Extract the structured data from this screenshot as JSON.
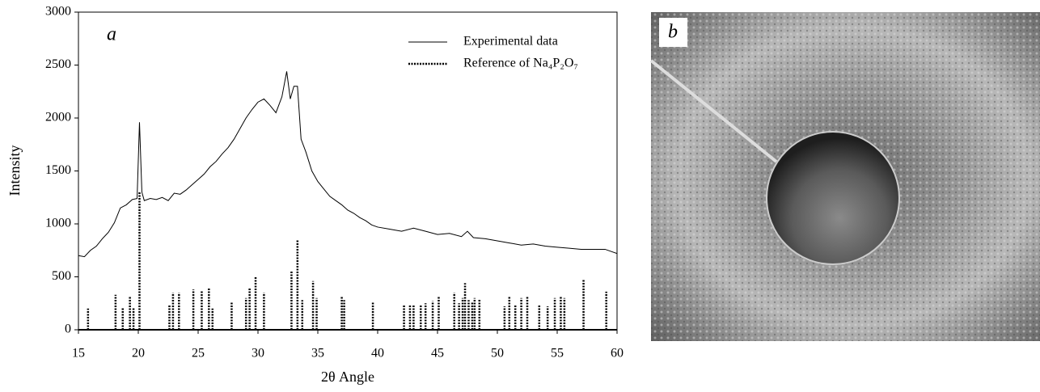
{
  "chart_data": {
    "type": "line",
    "panel_label": "a",
    "x_label": "2θ Angle",
    "y_label": "Intensity",
    "xlim": [
      15,
      60
    ],
    "xticks": [
      15,
      20,
      25,
      30,
      35,
      40,
      45,
      50,
      55,
      60
    ],
    "ylim": [
      0,
      3000
    ],
    "yticks": [
      0,
      500,
      1000,
      1500,
      2000,
      2500,
      3000
    ],
    "grid": false,
    "legend": "upper right",
    "series": [
      {
        "name": "Experimental data",
        "color": "#000000",
        "style": "line",
        "x": [
          15,
          15.5,
          16,
          16.5,
          17,
          17.5,
          18,
          18.5,
          19,
          19.5,
          19.9,
          20.1,
          20.3,
          20.5,
          21,
          21.5,
          22,
          22.5,
          23,
          23.5,
          24,
          24.5,
          25,
          25.5,
          26,
          26.5,
          27,
          27.5,
          28,
          28.5,
          29,
          29.5,
          30,
          30.5,
          31,
          31.5,
          32,
          32.4,
          32.7,
          33,
          33.3,
          33.6,
          34,
          34.5,
          35,
          35.5,
          36,
          36.5,
          37,
          37.5,
          38,
          38.5,
          39,
          39.5,
          40,
          41,
          42,
          43,
          44,
          45,
          46,
          47,
          47.5,
          48,
          49,
          50,
          51,
          52,
          53,
          54,
          55,
          56,
          57,
          58,
          59,
          60
        ],
        "values": [
          700,
          690,
          750,
          790,
          860,
          920,
          1010,
          1150,
          1180,
          1230,
          1240,
          1960,
          1300,
          1220,
          1240,
          1230,
          1250,
          1220,
          1290,
          1280,
          1320,
          1370,
          1420,
          1470,
          1540,
          1590,
          1660,
          1720,
          1800,
          1900,
          2000,
          2080,
          2150,
          2180,
          2120,
          2050,
          2200,
          2440,
          2180,
          2300,
          2300,
          1800,
          1680,
          1500,
          1400,
          1330,
          1260,
          1220,
          1180,
          1130,
          1100,
          1060,
          1030,
          990,
          970,
          950,
          930,
          960,
          930,
          900,
          910,
          880,
          930,
          870,
          860,
          840,
          820,
          800,
          810,
          790,
          780,
          770,
          760,
          760,
          760,
          720
        ]
      },
      {
        "name": "Reference of Na₄P₂O₇",
        "color": "#000000",
        "style": "stem",
        "x": [
          15.8,
          18.1,
          18.7,
          19.3,
          19.6,
          20.1,
          22.6,
          22.9,
          23.4,
          24.6,
          25.3,
          25.9,
          26.2,
          27.8,
          29.0,
          29.3,
          29.8,
          30.5,
          32.8,
          33.3,
          33.7,
          34.6,
          34.9,
          37.0,
          37.2,
          39.6,
          42.2,
          42.7,
          43.0,
          43.6,
          44.0,
          44.6,
          45.1,
          46.4,
          46.8,
          47.1,
          47.3,
          47.6,
          47.9,
          48.1,
          48.5,
          50.6,
          51.0,
          51.5,
          52.0,
          52.5,
          53.5,
          54.2,
          54.8,
          55.3,
          55.6,
          57.2,
          59.1
        ],
        "values": [
          200,
          330,
          210,
          310,
          210,
          1300,
          240,
          350,
          350,
          380,
          370,
          390,
          200,
          260,
          300,
          390,
          500,
          350,
          560,
          850,
          280,
          460,
          300,
          320,
          280,
          260,
          240,
          230,
          230,
          230,
          250,
          270,
          310,
          350,
          250,
          300,
          440,
          280,
          260,
          300,
          290,
          220,
          320,
          230,
          300,
          320,
          230,
          220,
          300,
          310,
          300,
          480,
          360
        ]
      }
    ]
  },
  "image": {
    "panel_label": "b"
  }
}
